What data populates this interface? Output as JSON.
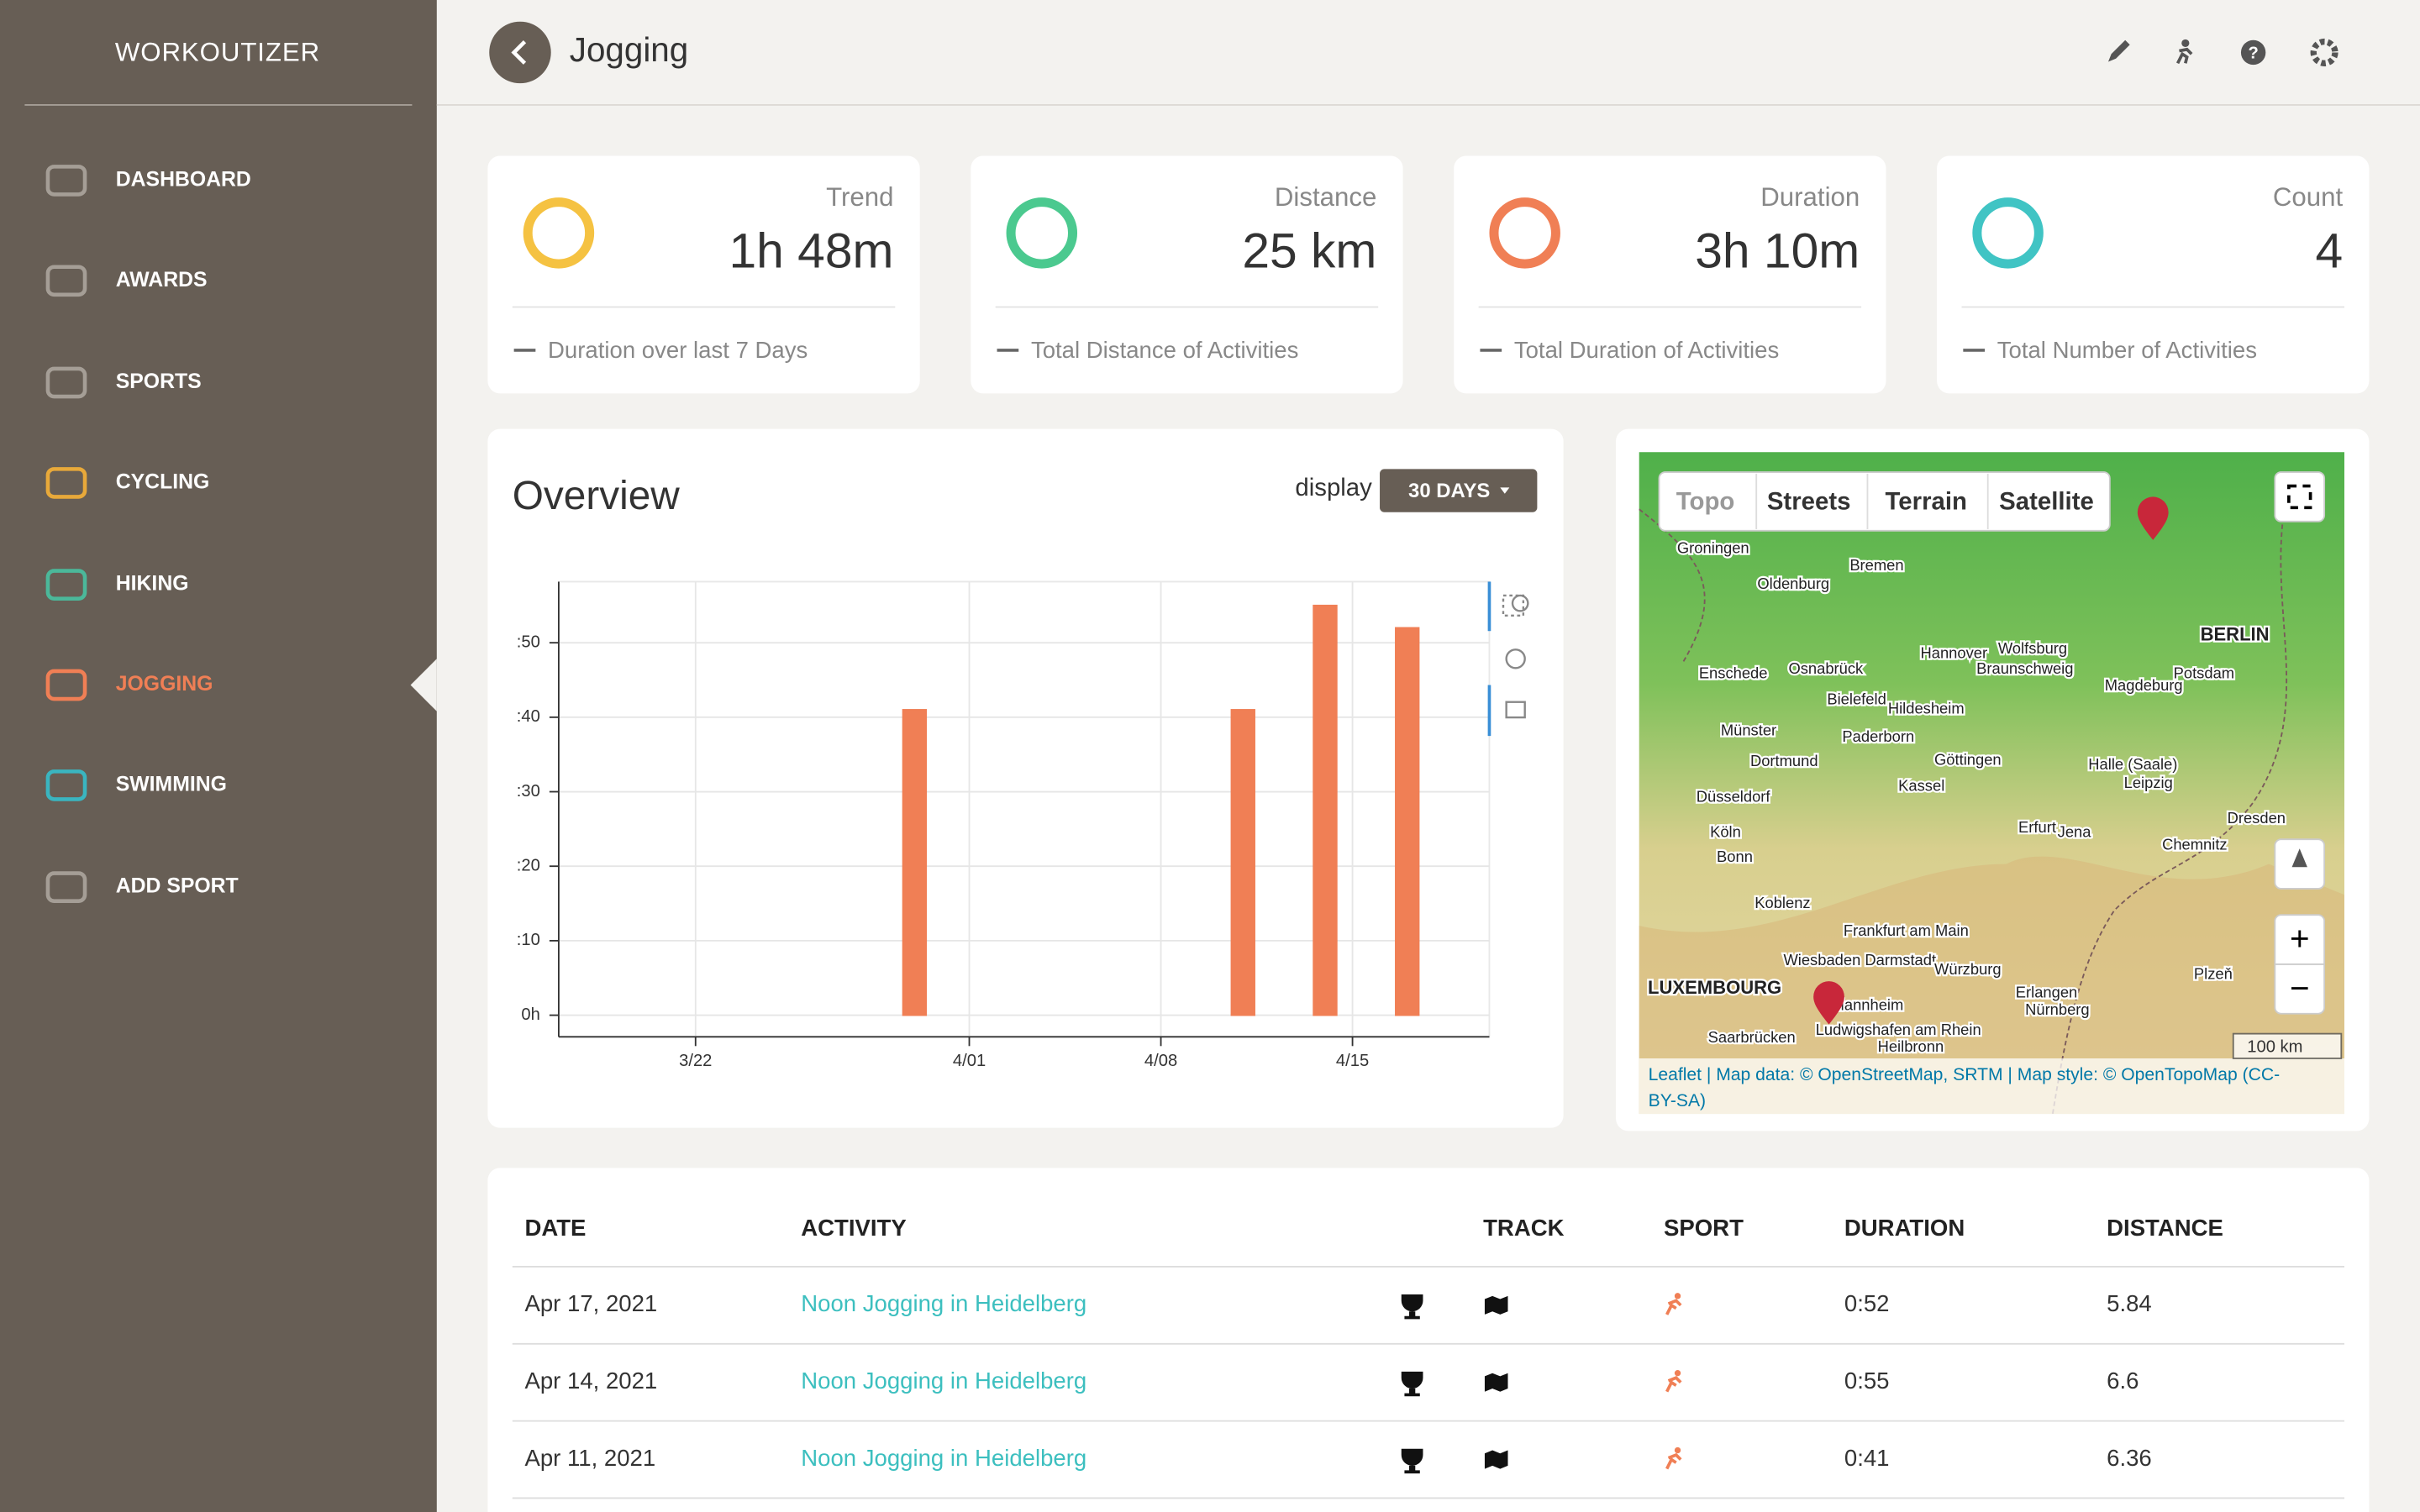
{
  "sidebar": {
    "brand": "WORKOUTIZER",
    "items": [
      "DASHBOARD",
      "AWARDS",
      "SPORTS",
      "CYCLING",
      "HIKING",
      "JOGGING",
      "SWIMMING",
      "ADD SPORT"
    ]
  },
  "header": {
    "title": "Jogging"
  },
  "cards": [
    {
      "label": "Trend",
      "value": "1h 48m",
      "footer": "Duration over last 7 Days"
    },
    {
      "label": "Distance",
      "value": "25 km",
      "footer": "Total Distance of Activities"
    },
    {
      "label": "Duration",
      "value": "3h 10m",
      "footer": "Total Duration of Activities"
    },
    {
      "label": "Count",
      "value": "4",
      "footer": "Total Number of Activities"
    }
  ],
  "overview": {
    "title": "Overview",
    "display_label": "display",
    "range_button": "30 DAYS"
  },
  "chart_data": {
    "type": "bar",
    "color": "#f07f55",
    "grid": true,
    "categories": [
      null,
      null,
      null,
      "3/22",
      null,
      null,
      null,
      null,
      null,
      null,
      null,
      null,
      null,
      "4/01",
      null,
      null,
      null,
      null,
      null,
      null,
      "4/08",
      null,
      null,
      null,
      null,
      null,
      null,
      "4/15",
      null,
      null,
      null
    ],
    "values": [
      0,
      0,
      0,
      0,
      0,
      0,
      0,
      0,
      0,
      0,
      0,
      41,
      0,
      0,
      0,
      0,
      0,
      0,
      0,
      0,
      0,
      0,
      0,
      41,
      0,
      0,
      55,
      0,
      0,
      52,
      0
    ],
    "ylim": [
      -2.9,
      58.2
    ],
    "yticks": [
      {
        "value": 0,
        "label": "0h"
      },
      {
        "value": 10,
        "label": ":10"
      },
      {
        "value": 20,
        "label": ":20"
      },
      {
        "value": 30,
        "label": ":30"
      },
      {
        "value": 40,
        "label": ":40"
      },
      {
        "value": 50,
        "label": ":50"
      }
    ]
  },
  "map": {
    "layers": [
      "Topo",
      "Streets",
      "Terrain",
      "Satellite"
    ],
    "zoom_in": "+",
    "zoom_out": "−",
    "scale": "100 km",
    "attribution": [
      "Leaflet | Map data: © OpenStreetMap, SRTM | Map style: © OpenTopoMap (CC-",
      "BY-SA)"
    ],
    "places": [
      "Groningen",
      "Bremen",
      "Oldenburg",
      "Hannover",
      "Wolfsburg",
      "Braunschweig",
      "BERLIN",
      "Potsdam",
      "Magdeburg",
      "Osnabrück",
      "Enschede",
      "Bielefeld",
      "Hildesheim",
      "Münster",
      "Paderborn",
      "Dortmund",
      "Göttingen",
      "Halle (Saale)",
      "Leipzig",
      "Düsseldorf",
      "Kassel",
      "Dresden",
      "Köln",
      "Erfurt",
      "Jena",
      "Chemnitz",
      "Bonn",
      "Koblenz",
      "Frankfurt am Main",
      "Wiesbaden Darmstadt",
      "Würzburg",
      "LUXEMBOURG",
      "Mannheim",
      "Erlangen",
      "Nürnberg",
      "Plzeň",
      "Ludwigshafen am Rhein",
      "Saarbrücken",
      "Heilbronn"
    ]
  },
  "table": {
    "headers": [
      "DATE",
      "ACTIVITY",
      "TRACK",
      "SPORT",
      "DURATION",
      "DISTANCE"
    ],
    "rows": [
      [
        "Apr 17, 2021",
        "Noon Jogging in Heidelberg",
        "0:52",
        "5.84"
      ],
      [
        "Apr 14, 2021",
        "Noon Jogging in Heidelberg",
        "0:55",
        "6.6"
      ],
      [
        "Apr 11, 2021",
        "Noon Jogging in Heidelberg",
        "0:41",
        "6.36"
      ]
    ]
  }
}
